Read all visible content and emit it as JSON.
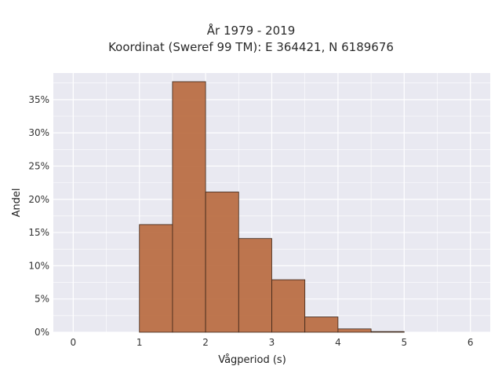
{
  "chart_data": {
    "type": "bar",
    "title": "År 1979 - 2019",
    "subtitle": "Koordinat (Sweref 99 TM): E 364421, N 6189676",
    "xlabel": "Vågperiod (s)",
    "ylabel": "Andel",
    "bin_edges": [
      1.0,
      1.5,
      2.0,
      2.5,
      3.0,
      3.5,
      4.0,
      4.5,
      5.0
    ],
    "values": [
      0.162,
      0.377,
      0.211,
      0.141,
      0.079,
      0.023,
      0.005,
      0.001
    ],
    "xlim": [
      -0.3,
      6.3
    ],
    "ylim": [
      0,
      0.39
    ],
    "xticks": [
      0,
      1,
      2,
      3,
      4,
      5,
      6
    ],
    "xtick_labels": [
      "0",
      "1",
      "2",
      "3",
      "4",
      "5",
      "6"
    ],
    "yticks": [
      0,
      0.05,
      0.1,
      0.15,
      0.2,
      0.25,
      0.3,
      0.35
    ],
    "ytick_labels": [
      "0%",
      "5%",
      "10%",
      "15%",
      "20%",
      "25%",
      "30%",
      "35%"
    ],
    "grid": true,
    "colors": {
      "bar_fill": "#b86a40",
      "bar_stroke": "#3a2518",
      "plot_bg": "#e9e9f1",
      "grid": "#ffffff"
    }
  }
}
